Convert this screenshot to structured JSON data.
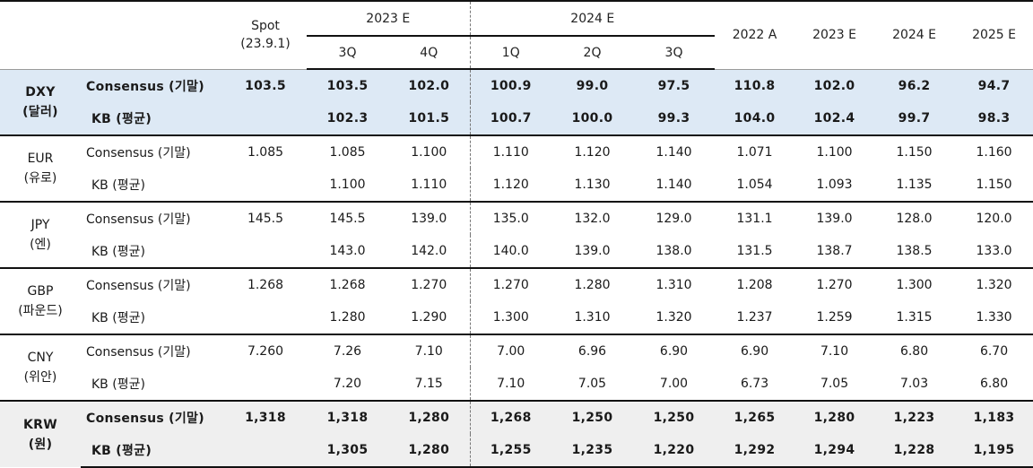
{
  "header": {
    "spot_line1": "Spot",
    "spot_line2": "(23.9.1)",
    "group_2023": "2023 E",
    "group_2024": "2024 E",
    "q_2023": [
      "3Q",
      "4Q"
    ],
    "q_2024": [
      "1Q",
      "2Q",
      "3Q"
    ],
    "annual": [
      "2022 A",
      "2023 E",
      "2024 E",
      "2025 E"
    ]
  },
  "currencies": [
    {
      "code": "DXY",
      "local": "(달러)",
      "consensus_label": "Consensus (기말)",
      "kb_label": "KB (평균)",
      "consensus": [
        "103.5",
        "103.5",
        "102.0",
        "100.9",
        "99.0",
        "97.5",
        "110.8",
        "102.0",
        "96.2",
        "94.7"
      ],
      "kb": [
        "",
        "102.3",
        "101.5",
        "100.7",
        "100.0",
        "99.3",
        "104.0",
        "102.4",
        "99.7",
        "98.3"
      ]
    },
    {
      "code": "EUR",
      "local": "(유로)",
      "consensus_label": "Consensus (기말)",
      "kb_label": "KB (평균)",
      "consensus": [
        "1.085",
        "1.085",
        "1.100",
        "1.110",
        "1.120",
        "1.140",
        "1.071",
        "1.100",
        "1.150",
        "1.160"
      ],
      "kb": [
        "",
        "1.100",
        "1.110",
        "1.120",
        "1.130",
        "1.140",
        "1.054",
        "1.093",
        "1.135",
        "1.150"
      ]
    },
    {
      "code": "JPY",
      "local": "(엔)",
      "consensus_label": "Consensus (기말)",
      "kb_label": "KB (평균)",
      "consensus": [
        "145.5",
        "145.5",
        "139.0",
        "135.0",
        "132.0",
        "129.0",
        "131.1",
        "139.0",
        "128.0",
        "120.0"
      ],
      "kb": [
        "",
        "143.0",
        "142.0",
        "140.0",
        "139.0",
        "138.0",
        "131.5",
        "138.7",
        "138.5",
        "133.0"
      ]
    },
    {
      "code": "GBP",
      "local": "(파운드)",
      "consensus_label": "Consensus (기말)",
      "kb_label": "KB (평균)",
      "consensus": [
        "1.268",
        "1.268",
        "1.270",
        "1.270",
        "1.280",
        "1.310",
        "1.208",
        "1.270",
        "1.300",
        "1.320"
      ],
      "kb": [
        "",
        "1.280",
        "1.290",
        "1.300",
        "1.310",
        "1.320",
        "1.237",
        "1.259",
        "1.315",
        "1.330"
      ]
    },
    {
      "code": "CNY",
      "local": "(위안)",
      "consensus_label": "Consensus (기말)",
      "kb_label": "KB (평균)",
      "consensus": [
        "7.260",
        "7.26",
        "7.10",
        "7.00",
        "6.96",
        "6.90",
        "6.90",
        "7.10",
        "6.80",
        "6.70"
      ],
      "kb": [
        "",
        "7.20",
        "7.15",
        "7.10",
        "7.05",
        "7.00",
        "6.73",
        "7.05",
        "7.03",
        "6.80"
      ]
    },
    {
      "code": "KRW",
      "local": "(원)",
      "consensus_label": "Consensus (기말)",
      "kb_label": "KB (평균)",
      "consensus": [
        "1,318",
        "1,318",
        "1,280",
        "1,268",
        "1,250",
        "1,250",
        "1,265",
        "1,280",
        "1,223",
        "1,183"
      ],
      "kb": [
        "",
        "1,305",
        "1,280",
        "1,255",
        "1,235",
        "1,220",
        "1,292",
        "1,294",
        "1,228",
        "1,195"
      ]
    }
  ],
  "colors": {
    "dxy_bg": "#dde9f5",
    "krw_bg": "#efefef",
    "rule": "#111111"
  }
}
